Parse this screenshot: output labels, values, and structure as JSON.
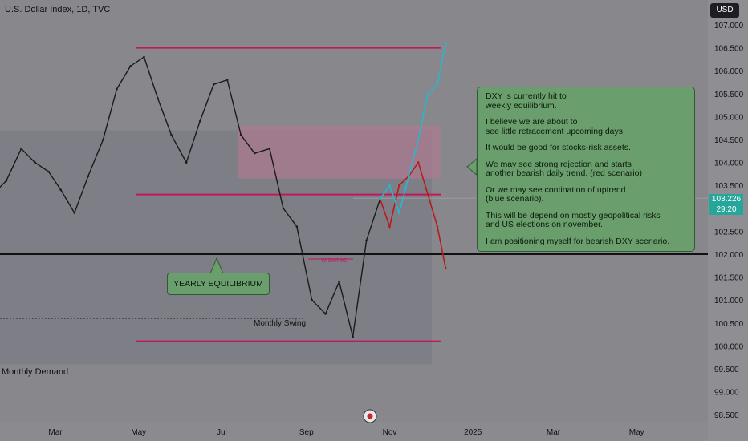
{
  "header": {
    "title": "U.S. Dollar Index, 1D, TVC",
    "currency_button": "USD"
  },
  "annotations": {
    "callout": [
      "DXY is currently hit to\nweekly equilibrium.",
      "I believe we are about to\nsee little retracement upcoming days.",
      "It would be good for stocks-risk assets.",
      "We may see strong rejection and starts\nanother bearish daily trend. (red scenario)",
      "Or we may see contination of uptrend\n(blue scenario).",
      "This will be depend on mostly geopolitical risks\nand US elections on november.",
      "I am positioning myself for bearish DXY scenario."
    ],
    "yearly": "YEARLY EQUILIBRIUM",
    "monthly_swing": "Monthly Swing",
    "monthly_demand": "Monthly Demand",
    "w_swing": "W SWING"
  },
  "price_tag": {
    "value": "103.226",
    "timer": "29:20"
  },
  "colors": {
    "bg": "#87878c",
    "level": "#c2185b",
    "red_path": "#b71c1c",
    "blue_path": "#29b6d1",
    "candle": "#1b1b1b",
    "callout_bg": "#6a9e6c"
  },
  "chart_data": {
    "type": "line",
    "title": "U.S. Dollar Index, 1D, TVC",
    "ylim": [
      98.5,
      107.0
    ],
    "y_ticks": [
      "107.000",
      "106.500",
      "106.000",
      "105.500",
      "105.000",
      "104.500",
      "104.000",
      "103.500",
      "103.000",
      "102.500",
      "102.000",
      "101.500",
      "101.000",
      "100.500",
      "100.000",
      "99.500",
      "99.000",
      "98.500"
    ],
    "x_ticks": [
      "Mar",
      "May",
      "Jul",
      "Sep",
      "Nov",
      "2025",
      "Mar",
      "May"
    ],
    "levels": [
      106.5,
      103.3,
      102.0,
      100.1
    ],
    "zones": [
      {
        "name": "Monthly Demand",
        "from": 99.6,
        "to": 104.7
      },
      {
        "name": "supply",
        "from": 103.65,
        "to": 104.8
      }
    ],
    "series": [
      {
        "name": "",
        "x": [
          "2024-01-15",
          "2024-01-25",
          "2024-02-05",
          "2024-02-15",
          "2024-02-25",
          "2024-03-05",
          "2024-03-15",
          "2024-03-25",
          "2024-04-05",
          "2024-04-15",
          "2024-04-25",
          "2024-05-05",
          "2024-05-15",
          "2024-05-25",
          "2024-06-05",
          "2024-06-15",
          "2024-06-25",
          "2024-07-05",
          "2024-07-15",
          "2024-07-25",
          "2024-08-05",
          "2024-08-15",
          "2024-08-25",
          "2024-09-05",
          "2024-09-15",
          "2024-09-25",
          "2024-10-05",
          "2024-10-15",
          "2024-10-25"
        ],
        "values": [
          103.3,
          103.6,
          104.3,
          104.0,
          103.8,
          103.4,
          102.9,
          103.7,
          104.5,
          105.6,
          106.1,
          106.3,
          105.4,
          104.6,
          104.0,
          104.9,
          105.7,
          105.8,
          104.6,
          104.2,
          104.3,
          103.0,
          102.6,
          101.0,
          100.7,
          101.4,
          100.2,
          102.3,
          103.2
        ]
      },
      {
        "name": "",
        "x": [
          "2024-10-25",
          "2024-11-01",
          "2024-11-08",
          "2024-11-15",
          "2024-11-22",
          "2024-11-29",
          "2024-12-06",
          "2024-12-12"
        ],
        "values": [
          103.2,
          102.6,
          103.5,
          103.7,
          104.0,
          103.3,
          102.6,
          101.7
        ]
      },
      {
        "name": "",
        "x": [
          "2024-10-25",
          "2024-11-01",
          "2024-11-08",
          "2024-11-15",
          "2024-11-22",
          "2024-11-29",
          "2024-12-06",
          "2024-12-12"
        ],
        "values": [
          103.2,
          103.5,
          102.9,
          103.7,
          104.5,
          105.5,
          105.7,
          106.6
        ]
      }
    ]
  }
}
